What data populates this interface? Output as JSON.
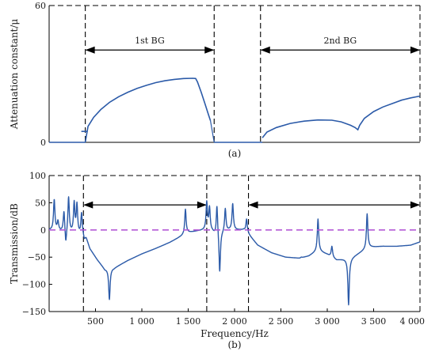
{
  "chart_data": [
    {
      "panel": "(a)",
      "type": "line",
      "ylabel": "Attenuation constant/μ",
      "xlabel": "",
      "xlim": [
        0,
        4000
      ],
      "ylim": [
        0,
        60
      ],
      "yticks": [
        0,
        60
      ],
      "ytick_labels": [
        "0",
        "60"
      ],
      "grid": false,
      "series": [
        {
          "name": "",
          "color": "#2b5aa8",
          "segments": [
            {
              "x": [
                390,
                420,
                480,
                560,
                650,
                750,
                850,
                950,
                1050,
                1150,
                1250,
                1350,
                1450,
                1550,
                1580,
                1600,
                1640,
                1680,
                1720,
                1740
              ],
              "y": [
                0,
                7,
                11,
                14.5,
                17.5,
                20,
                22,
                23.7,
                25,
                26.2,
                27,
                27.6,
                28,
                28.1,
                28,
                26.5,
                22,
                17,
                12,
                9.5
              ]
            },
            {
              "x": [
                2300,
                2350,
                2450,
                2600,
                2750,
                2900,
                3050,
                3150,
                3250,
                3300,
                3330,
                3350,
                3400,
                3500,
                3600,
                3700,
                3800,
                3900,
                4000
              ],
              "y": [
                2,
                4.5,
                6.5,
                8.3,
                9.3,
                9.8,
                9.7,
                9,
                7.5,
                6.5,
                5.5,
                7.5,
                10.5,
                13.5,
                15.5,
                17,
                18.5,
                19.5,
                20.3
              ]
            }
          ]
        }
      ],
      "markers": [
        {
          "x": 390,
          "y": 4.8
        }
      ],
      "vlines": [
        390,
        1780,
        2280
      ],
      "band_arrows": [
        {
          "label": "1st BG",
          "x_from": 390,
          "x_to": 1780,
          "y": 40.5
        },
        {
          "label": "2nd BG",
          "x_from": 2280,
          "x_to": 4000,
          "y": 40.5
        }
      ],
      "top_dashed": true
    },
    {
      "panel": "(b)",
      "type": "line",
      "ylabel": "Transmission/dB",
      "xlabel": "Frequency/Hz",
      "xlim": [
        0,
        4000
      ],
      "ylim": [
        -150,
        100
      ],
      "yticks": [
        -150,
        -100,
        -50,
        0,
        50,
        100
      ],
      "ytick_labels": [
        "−150",
        "−100",
        "−50",
        "0",
        "50",
        "100"
      ],
      "xticks": [
        500,
        1000,
        1500,
        2000,
        2500,
        3000,
        3500,
        4000
      ],
      "xtick_labels": [
        "500",
        "1 000",
        "1 500",
        "2 000",
        "2 500",
        "3 000",
        "3 500",
        "4 000"
      ],
      "grid": false,
      "series": [
        {
          "name": "",
          "color": "#2b5aa8",
          "base": [
            [
              0,
              0
            ],
            [
              150,
              -3
            ],
            [
              300,
              -8
            ],
            [
              370,
              -12
            ],
            [
              400,
              -15
            ],
            [
              440,
              -35
            ],
            [
              520,
              -55
            ],
            [
              600,
              -72
            ],
            [
              700,
              -70
            ],
            [
              850,
              -56
            ],
            [
              1000,
              -44
            ],
            [
              1150,
              -34
            ],
            [
              1300,
              -23
            ],
            [
              1400,
              -14
            ],
            [
              1500,
              -5
            ],
            [
              1600,
              -2
            ],
            [
              1700,
              0
            ],
            [
              1760,
              -3
            ],
            [
              1800,
              -10
            ],
            [
              1850,
              -5
            ],
            [
              1950,
              0
            ],
            [
              2100,
              0
            ],
            [
              2150,
              -8
            ],
            [
              2250,
              -28
            ],
            [
              2400,
              -42
            ],
            [
              2550,
              -50
            ],
            [
              2700,
              -52
            ],
            [
              2800,
              -48
            ],
            [
              2900,
              -38
            ],
            [
              3000,
              -45
            ],
            [
              3100,
              -55
            ],
            [
              3250,
              -52
            ],
            [
              3350,
              -42
            ],
            [
              3450,
              -32
            ],
            [
              3600,
              -30
            ],
            [
              3750,
              -30
            ],
            [
              3900,
              -28
            ],
            [
              4000,
              -22
            ]
          ],
          "peaks": [
            [
              55,
              55
            ],
            [
              95,
              15
            ],
            [
              160,
              35
            ],
            [
              180,
              -32
            ],
            [
              210,
              60
            ],
            [
              270,
              48
            ],
            [
              300,
              45
            ],
            [
              350,
              30
            ],
            [
              380,
              -20
            ],
            [
              1470,
              38
            ],
            [
              1700,
              50
            ],
            [
              1730,
              40
            ],
            [
              1810,
              48
            ],
            [
              1840,
              -82
            ],
            [
              1900,
              40
            ],
            [
              1980,
              48
            ],
            [
              2130,
              20
            ],
            [
              2720,
              -50
            ],
            [
              2900,
              20
            ],
            [
              3050,
              -30
            ],
            [
              3230,
              -138
            ],
            [
              3430,
              30
            ]
          ],
          "valleys": [
            [
              650,
              -128
            ]
          ]
        },
        {
          "name": "",
          "color": "#b55ad6",
          "style": "dashed",
          "x": [
            0,
            4000
          ],
          "y": [
            0,
            0
          ]
        }
      ],
      "vlines": [
        370,
        1700,
        2150
      ],
      "band_arrows": [
        {
          "label": "",
          "x_from": 370,
          "x_to": 1700,
          "y": 46
        },
        {
          "label": "",
          "x_from": 2150,
          "x_to": 4000,
          "y": 46
        }
      ],
      "top_dashed": true
    }
  ]
}
